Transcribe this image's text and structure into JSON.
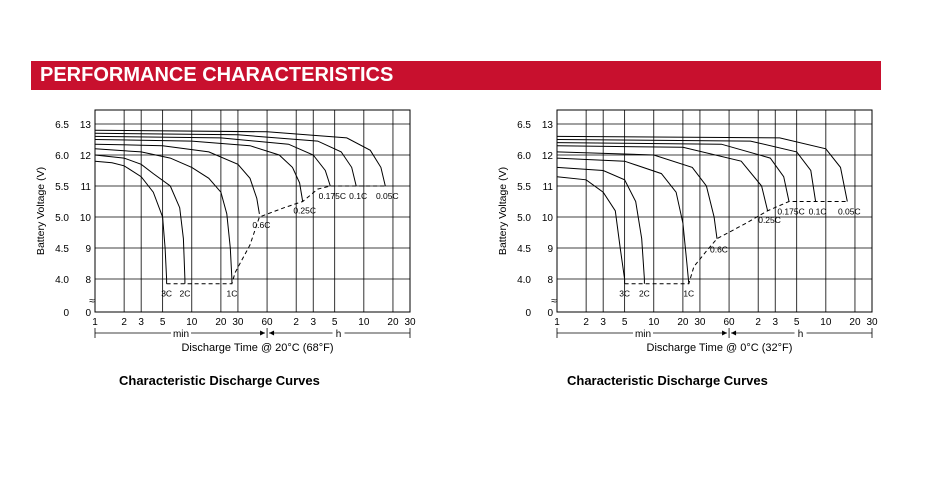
{
  "banner": {
    "title": "PERFORMANCE CHARACTERISTICS",
    "color": "#c8102e"
  },
  "charts": [
    {
      "caption": "Characteristic Discharge Curves",
      "xlabel": "Discharge Time @ 20°C (68°F)",
      "ylabel": "Battery Voltage (V)",
      "min_label": "min",
      "h_label": "h"
    },
    {
      "caption": "Characteristic Discharge Curves",
      "xlabel": "Discharge Time @ 0°C (32°F)",
      "ylabel": "Battery Voltage (V)",
      "min_label": "min",
      "h_label": "h"
    }
  ],
  "chart_data": [
    {
      "type": "line",
      "title": "Characteristic Discharge Curves",
      "xlabel": "Discharge Time @ 20°C (68°F)",
      "ylabel": "Battery Voltage (V)",
      "x_scale": "log",
      "x_unit": "min",
      "xlim": [
        1,
        1800
      ],
      "x_ticks": [
        {
          "label": "1",
          "min": 1
        },
        {
          "label": "2",
          "min": 2
        },
        {
          "label": "3",
          "min": 3
        },
        {
          "label": "5",
          "min": 5
        },
        {
          "label": "10",
          "min": 10
        },
        {
          "label": "20",
          "min": 20
        },
        {
          "label": "30",
          "min": 30
        },
        {
          "label": "60",
          "min": 60
        },
        {
          "label": "2",
          "min": 120
        },
        {
          "label": "3",
          "min": 180
        },
        {
          "label": "5",
          "min": 300
        },
        {
          "label": "10",
          "min": 600
        },
        {
          "label": "20",
          "min": 1200
        },
        {
          "label": "30",
          "min": 1800
        }
      ],
      "y_ticks_outer": [
        "6.5",
        "6.0",
        "5.5",
        "5.0",
        "4.5",
        "4.0",
        "0"
      ],
      "y_ticks_inner": [
        "13",
        "12",
        "11",
        "10",
        "9",
        "8",
        "0"
      ],
      "grid": true,
      "cutoff_line": "dashed",
      "series": [
        {
          "name": "3C",
          "points": [
            [
              1,
              11.8
            ],
            [
              1.5,
              11.75
            ],
            [
              2,
              11.65
            ],
            [
              3,
              11.3
            ],
            [
              4,
              10.8
            ],
            [
              5,
              10.0
            ],
            [
              5.3,
              9.0
            ],
            [
              5.5,
              8.0
            ],
            [
              5.5,
              7.85
            ]
          ]
        },
        {
          "name": "2C",
          "points": [
            [
              1,
              12.0
            ],
            [
              2,
              11.9
            ],
            [
              3,
              11.7
            ],
            [
              4,
              11.4
            ],
            [
              6,
              11.0
            ],
            [
              7.5,
              10.3
            ],
            [
              8.2,
              9.3
            ],
            [
              8.5,
              8.0
            ],
            [
              8.5,
              7.85
            ]
          ]
        },
        {
          "name": "1C",
          "points": [
            [
              1,
              12.2
            ],
            [
              3,
              12.1
            ],
            [
              6,
              11.9
            ],
            [
              10,
              11.6
            ],
            [
              15,
              11.25
            ],
            [
              20,
              10.8
            ],
            [
              23,
              10.1
            ],
            [
              25,
              9.0
            ],
            [
              26,
              8.0
            ],
            [
              26,
              7.85
            ]
          ]
        },
        {
          "name": "0.6C",
          "points": [
            [
              1,
              12.35
            ],
            [
              5,
              12.3
            ],
            [
              15,
              12.1
            ],
            [
              30,
              11.7
            ],
            [
              40,
              11.25
            ],
            [
              47,
              10.6
            ],
            [
              50,
              10.1
            ]
          ]
        },
        {
          "name": "0.25C",
          "points": [
            [
              1,
              12.5
            ],
            [
              10,
              12.45
            ],
            [
              40,
              12.3
            ],
            [
              80,
              12.0
            ],
            [
              110,
              11.6
            ],
            [
              130,
              11.1
            ],
            [
              140,
              10.5
            ]
          ]
        },
        {
          "name": "0.175C",
          "points": [
            [
              1,
              12.6
            ],
            [
              20,
              12.55
            ],
            [
              100,
              12.35
            ],
            [
              180,
              12.0
            ],
            [
              240,
              11.5
            ],
            [
              270,
              11.0
            ]
          ]
        },
        {
          "name": "0.1C",
          "points": [
            [
              1,
              12.7
            ],
            [
              30,
              12.65
            ],
            [
              200,
              12.45
            ],
            [
              350,
              12.1
            ],
            [
              450,
              11.6
            ],
            [
              500,
              11.0
            ]
          ]
        },
        {
          "name": "0.05C",
          "points": [
            [
              1,
              12.8
            ],
            [
              60,
              12.75
            ],
            [
              400,
              12.55
            ],
            [
              700,
              12.15
            ],
            [
              900,
              11.6
            ],
            [
              1000,
              11.0
            ]
          ]
        }
      ],
      "cutoff_points": [
        [
          5.5,
          7.85
        ],
        [
          8.5,
          7.85
        ],
        [
          26,
          7.85
        ],
        [
          28,
          8.2
        ],
        [
          40,
          9.1
        ],
        [
          50,
          10.0
        ],
        [
          90,
          10.3
        ],
        [
          140,
          10.5
        ],
        [
          200,
          10.9
        ],
        [
          270,
          11.0
        ],
        [
          500,
          11.0
        ],
        [
          1000,
          11.0
        ]
      ]
    },
    {
      "type": "line",
      "title": "Characteristic Discharge Curves",
      "xlabel": "Discharge Time @ 0°C (32°F)",
      "ylabel": "Battery Voltage (V)",
      "x_scale": "log",
      "x_unit": "min",
      "xlim": [
        1,
        1800
      ],
      "x_ticks": [
        {
          "label": "1",
          "min": 1
        },
        {
          "label": "2",
          "min": 2
        },
        {
          "label": "3",
          "min": 3
        },
        {
          "label": "5",
          "min": 5
        },
        {
          "label": "10",
          "min": 10
        },
        {
          "label": "20",
          "min": 20
        },
        {
          "label": "30",
          "min": 30
        },
        {
          "label": "60",
          "min": 60
        },
        {
          "label": "2",
          "min": 120
        },
        {
          "label": "3",
          "min": 180
        },
        {
          "label": "5",
          "min": 300
        },
        {
          "label": "10",
          "min": 600
        },
        {
          "label": "20",
          "min": 1200
        },
        {
          "label": "30",
          "min": 1800
        }
      ],
      "y_ticks_outer": [
        "6.5",
        "6.0",
        "5.5",
        "5.0",
        "4.5",
        "4.0",
        "0"
      ],
      "y_ticks_inner": [
        "13",
        "12",
        "11",
        "10",
        "9",
        "8",
        "0"
      ],
      "grid": true,
      "cutoff_line": "dashed",
      "series": [
        {
          "name": "3C",
          "points": [
            [
              1,
              11.3
            ],
            [
              2,
              11.2
            ],
            [
              3,
              10.8
            ],
            [
              4,
              10.2
            ],
            [
              4.5,
              9.0
            ],
            [
              5,
              8.0
            ],
            [
              5,
              7.85
            ]
          ]
        },
        {
          "name": "2C",
          "points": [
            [
              1,
              11.6
            ],
            [
              3,
              11.5
            ],
            [
              5,
              11.2
            ],
            [
              6.5,
              10.5
            ],
            [
              7.5,
              9.3
            ],
            [
              8,
              8.0
            ],
            [
              8,
              7.85
            ]
          ]
        },
        {
          "name": "1C",
          "points": [
            [
              1,
              11.9
            ],
            [
              5,
              11.8
            ],
            [
              12,
              11.4
            ],
            [
              17,
              10.8
            ],
            [
              20,
              9.8
            ],
            [
              22,
              8.5
            ],
            [
              23,
              7.85
            ]
          ]
        },
        {
          "name": "0.6C",
          "points": [
            [
              1,
              12.1
            ],
            [
              10,
              12.0
            ],
            [
              25,
              11.6
            ],
            [
              35,
              11.0
            ],
            [
              42,
              10.0
            ],
            [
              45,
              9.3
            ]
          ]
        },
        {
          "name": "0.25C",
          "points": [
            [
              1,
              12.3
            ],
            [
              20,
              12.25
            ],
            [
              80,
              11.8
            ],
            [
              130,
              11.0
            ],
            [
              150,
              10.2
            ]
          ]
        },
        {
          "name": "0.175C",
          "points": [
            [
              1,
              12.4
            ],
            [
              50,
              12.35
            ],
            [
              160,
              11.9
            ],
            [
              220,
              11.3
            ],
            [
              250,
              10.5
            ]
          ]
        },
        {
          "name": "0.1C",
          "points": [
            [
              1,
              12.5
            ],
            [
              100,
              12.45
            ],
            [
              300,
              12.1
            ],
            [
              420,
              11.5
            ],
            [
              470,
              10.5
            ]
          ]
        },
        {
          "name": "0.05C",
          "points": [
            [
              1,
              12.6
            ],
            [
              200,
              12.55
            ],
            [
              600,
              12.2
            ],
            [
              850,
              11.6
            ],
            [
              1000,
              10.5
            ]
          ]
        }
      ],
      "cutoff_points": [
        [
          5,
          7.85
        ],
        [
          8,
          7.85
        ],
        [
          23,
          7.85
        ],
        [
          26,
          8.4
        ],
        [
          35,
          8.9
        ],
        [
          45,
          9.3
        ],
        [
          90,
          9.8
        ],
        [
          150,
          10.2
        ],
        [
          250,
          10.5
        ],
        [
          470,
          10.5
        ],
        [
          1000,
          10.5
        ]
      ]
    }
  ]
}
